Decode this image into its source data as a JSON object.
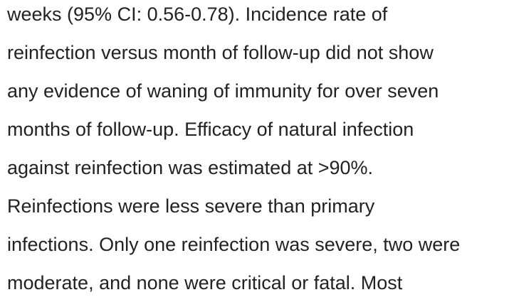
{
  "article": {
    "lines": [
      "weeks (95% CI: 0.56-0.78). Incidence rate of",
      "reinfection versus month of follow-up did not show",
      "any evidence of waning of immunity for over seven",
      "months of follow-up. Efficacy of natural infection",
      "against reinfection was estimated at >90%.",
      "Reinfections were less severe than primary",
      "infections. Only one reinfection was severe, two were",
      "moderate, and none were critical or fatal. Most"
    ]
  }
}
